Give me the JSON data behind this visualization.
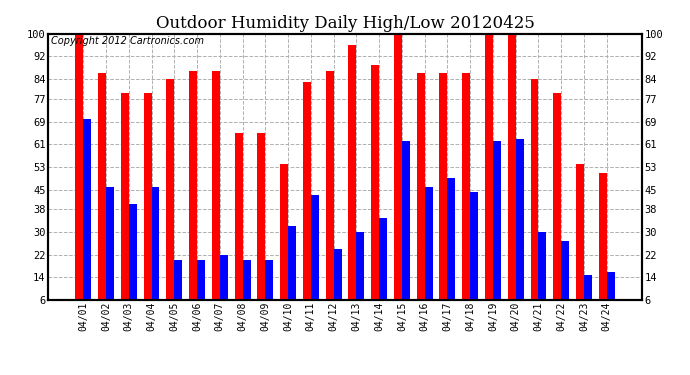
{
  "title": "Outdoor Humidity Daily High/Low 20120425",
  "copyright": "Copyright 2012 Cartronics.com",
  "categories": [
    "04/01",
    "04/02",
    "04/03",
    "04/04",
    "04/05",
    "04/06",
    "04/07",
    "04/08",
    "04/09",
    "04/10",
    "04/11",
    "04/12",
    "04/13",
    "04/14",
    "04/15",
    "04/16",
    "04/17",
    "04/18",
    "04/19",
    "04/20",
    "04/21",
    "04/22",
    "04/23",
    "04/24"
  ],
  "high_values": [
    100,
    86,
    79,
    79,
    84,
    87,
    87,
    65,
    65,
    54,
    83,
    87,
    96,
    89,
    100,
    86,
    86,
    86,
    100,
    100,
    84,
    79,
    54,
    51
  ],
  "low_values": [
    70,
    46,
    40,
    46,
    20,
    20,
    22,
    20,
    20,
    32,
    43,
    24,
    30,
    35,
    62,
    46,
    49,
    44,
    62,
    63,
    30,
    27,
    15,
    16
  ],
  "high_color": "#ff0000",
  "low_color": "#0000ff",
  "bg_color": "#ffffff",
  "plot_bg_color": "#ffffff",
  "grid_color": "#b0b0b0",
  "yticks": [
    6,
    14,
    22,
    30,
    38,
    45,
    53,
    61,
    69,
    77,
    84,
    92,
    100
  ],
  "ylim_min": 6,
  "ylim_max": 100,
  "title_fontsize": 12,
  "copyright_fontsize": 7,
  "bar_width": 0.35
}
